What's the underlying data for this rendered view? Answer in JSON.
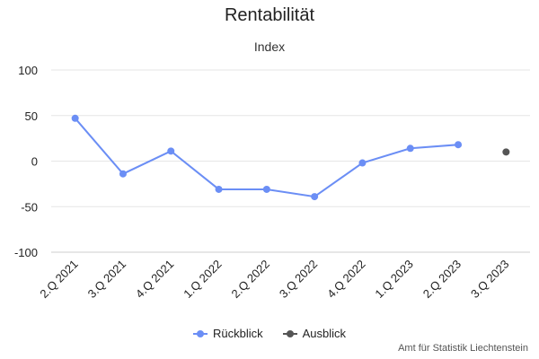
{
  "chart_data": {
    "type": "line",
    "title": "Rentabilität",
    "ylabel": "Index",
    "categories": [
      "2.Q 2021",
      "3.Q 2021",
      "4.Q 2021",
      "1.Q 2022",
      "2.Q 2022",
      "3.Q 2022",
      "4.Q 2022",
      "1.Q 2023",
      "2.Q 2023",
      "3.Q 2023"
    ],
    "ylim": [
      -100,
      100
    ],
    "yticks": [
      100,
      50,
      0,
      -50,
      -100
    ],
    "grid": true,
    "legend_position": "bottom",
    "series": [
      {
        "name": "Rückblick",
        "color": "#6b8ef5",
        "values": [
          47,
          -14,
          11,
          -31,
          -31,
          -39,
          -2,
          14,
          18,
          null
        ]
      },
      {
        "name": "Ausblick",
        "color": "#555555",
        "values": [
          null,
          null,
          null,
          null,
          null,
          null,
          null,
          null,
          null,
          10
        ]
      }
    ]
  },
  "credits": "Amt für Statistik Liechtenstein"
}
